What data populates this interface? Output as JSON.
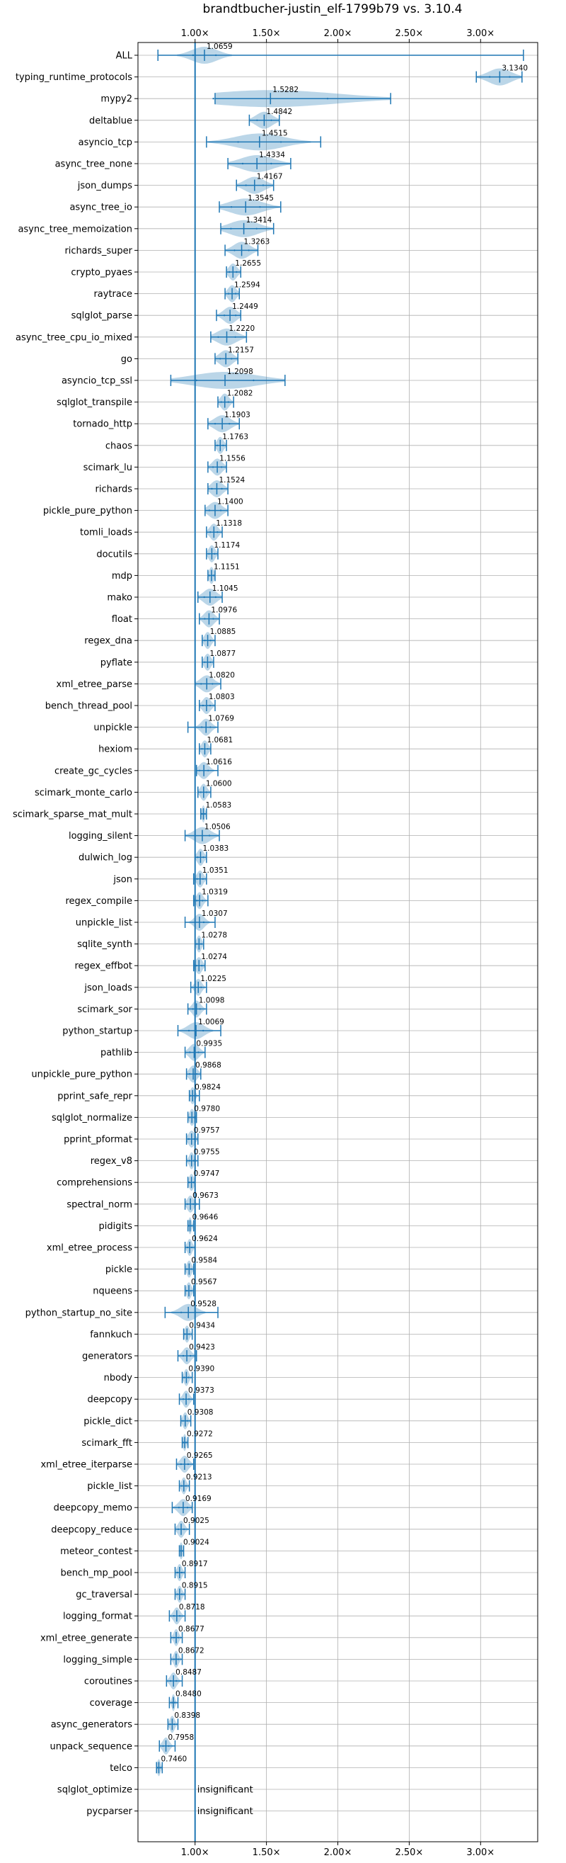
{
  "chart_data": {
    "type": "violin",
    "title": "brandtbucher-justin_elf-1799b79 vs. 3.10.4",
    "orientation": "horizontal",
    "x_ticks": [
      {
        "value": 1.0,
        "label": "1.00×"
      },
      {
        "value": 1.5,
        "label": "1.50×"
      },
      {
        "value": 2.0,
        "label": "2.00×"
      },
      {
        "value": 2.5,
        "label": "2.50×"
      },
      {
        "value": 3.0,
        "label": "3.00×"
      }
    ],
    "xlim": [
      0.6,
      3.4
    ],
    "grid": true,
    "baseline": 1.0,
    "benchmarks": [
      {
        "name": "ALL",
        "value": 1.0659,
        "label": "1.0659",
        "min": 0.74,
        "max": 3.3,
        "spread": 0.16
      },
      {
        "name": "typing_runtime_protocols",
        "value": 3.134,
        "label": "3.1340",
        "min": 2.97,
        "max": 3.29,
        "spread": 0.14
      },
      {
        "name": "mypy2",
        "value": 1.5282,
        "label": "1.5282",
        "min": 1.14,
        "max": 2.37,
        "spread": 0.8
      },
      {
        "name": "deltablue",
        "value": 1.4842,
        "label": "1.4842",
        "min": 1.38,
        "max": 1.59,
        "spread": 0.1
      },
      {
        "name": "asyncio_tcp",
        "value": 1.4515,
        "label": "1.4515",
        "min": 1.08,
        "max": 1.88,
        "spread": 0.3
      },
      {
        "name": "async_tree_none",
        "value": 1.4334,
        "label": "1.4334",
        "min": 1.23,
        "max": 1.67,
        "spread": 0.2
      },
      {
        "name": "json_dumps",
        "value": 1.4167,
        "label": "1.4167",
        "min": 1.29,
        "max": 1.55,
        "spread": 0.12
      },
      {
        "name": "async_tree_io",
        "value": 1.3545,
        "label": "1.3545",
        "min": 1.17,
        "max": 1.6,
        "spread": 0.2
      },
      {
        "name": "async_tree_memoization",
        "value": 1.3414,
        "label": "1.3414",
        "min": 1.18,
        "max": 1.55,
        "spread": 0.18
      },
      {
        "name": "richards_super",
        "value": 1.3263,
        "label": "1.3263",
        "min": 1.21,
        "max": 1.44,
        "spread": 0.1
      },
      {
        "name": "crypto_pyaes",
        "value": 1.2655,
        "label": "1.2655",
        "min": 1.22,
        "max": 1.32,
        "spread": 0.05
      },
      {
        "name": "raytrace",
        "value": 1.2594,
        "label": "1.2594",
        "min": 1.21,
        "max": 1.31,
        "spread": 0.05
      },
      {
        "name": "sqlglot_parse",
        "value": 1.2449,
        "label": "1.2449",
        "min": 1.15,
        "max": 1.32,
        "spread": 0.08
      },
      {
        "name": "async_tree_cpu_io_mixed",
        "value": 1.222,
        "label": "1.2220",
        "min": 1.11,
        "max": 1.36,
        "spread": 0.12
      },
      {
        "name": "go",
        "value": 1.2157,
        "label": "1.2157",
        "min": 1.14,
        "max": 1.3,
        "spread": 0.08
      },
      {
        "name": "asyncio_tcp_ssl",
        "value": 1.2098,
        "label": "1.2098",
        "min": 0.83,
        "max": 1.63,
        "spread": 0.4
      },
      {
        "name": "sqlglot_transpile",
        "value": 1.2082,
        "label": "1.2082",
        "min": 1.16,
        "max": 1.27,
        "spread": 0.05
      },
      {
        "name": "tornado_http",
        "value": 1.1903,
        "label": "1.1903",
        "min": 1.09,
        "max": 1.31,
        "spread": 0.1
      },
      {
        "name": "chaos",
        "value": 1.1763,
        "label": "1.1763",
        "min": 1.14,
        "max": 1.22,
        "spread": 0.04
      },
      {
        "name": "scimark_lu",
        "value": 1.1556,
        "label": "1.1556",
        "min": 1.09,
        "max": 1.22,
        "spread": 0.06
      },
      {
        "name": "richards",
        "value": 1.1524,
        "label": "1.1524",
        "min": 1.09,
        "max": 1.23,
        "spread": 0.07
      },
      {
        "name": "pickle_pure_python",
        "value": 1.14,
        "label": "1.1400",
        "min": 1.07,
        "max": 1.23,
        "spread": 0.08
      },
      {
        "name": "tomli_loads",
        "value": 1.1318,
        "label": "1.1318",
        "min": 1.08,
        "max": 1.19,
        "spread": 0.05
      },
      {
        "name": "docutils",
        "value": 1.1174,
        "label": "1.1174",
        "min": 1.08,
        "max": 1.16,
        "spread": 0.04
      },
      {
        "name": "mdp",
        "value": 1.1151,
        "label": "1.1151",
        "min": 1.09,
        "max": 1.14,
        "spread": 0.03
      },
      {
        "name": "mako",
        "value": 1.1045,
        "label": "1.1045",
        "min": 1.02,
        "max": 1.19,
        "spread": 0.08
      },
      {
        "name": "float",
        "value": 1.0976,
        "label": "1.0976",
        "min": 1.03,
        "max": 1.17,
        "spread": 0.06
      },
      {
        "name": "regex_dna",
        "value": 1.0885,
        "label": "1.0885",
        "min": 1.05,
        "max": 1.14,
        "spread": 0.04
      },
      {
        "name": "pyflate",
        "value": 1.0877,
        "label": "1.0877",
        "min": 1.05,
        "max": 1.13,
        "spread": 0.04
      },
      {
        "name": "xml_etree_parse",
        "value": 1.082,
        "label": "1.0820",
        "min": 1.0,
        "max": 1.18,
        "spread": 0.08
      },
      {
        "name": "bench_thread_pool",
        "value": 1.0803,
        "label": "1.0803",
        "min": 1.03,
        "max": 1.14,
        "spread": 0.05
      },
      {
        "name": "unpickle",
        "value": 1.0769,
        "label": "1.0769",
        "min": 0.95,
        "max": 1.16,
        "spread": 0.06
      },
      {
        "name": "hexiom",
        "value": 1.0681,
        "label": "1.0681",
        "min": 1.03,
        "max": 1.11,
        "spread": 0.04
      },
      {
        "name": "create_gc_cycles",
        "value": 1.0616,
        "label": "1.0616",
        "min": 1.01,
        "max": 1.16,
        "spread": 0.06
      },
      {
        "name": "scimark_monte_carlo",
        "value": 1.06,
        "label": "1.0600",
        "min": 1.02,
        "max": 1.11,
        "spread": 0.04
      },
      {
        "name": "scimark_sparse_mat_mult",
        "value": 1.0583,
        "label": "1.0583",
        "min": 1.04,
        "max": 1.08,
        "spread": 0.02
      },
      {
        "name": "logging_silent",
        "value": 1.0506,
        "label": "1.0506",
        "min": 0.93,
        "max": 1.17,
        "spread": 0.1
      },
      {
        "name": "dulwich_log",
        "value": 1.0383,
        "label": "1.0383",
        "min": 1.0,
        "max": 1.08,
        "spread": 0.04
      },
      {
        "name": "json",
        "value": 1.0351,
        "label": "1.0351",
        "min": 0.99,
        "max": 1.08,
        "spread": 0.04
      },
      {
        "name": "regex_compile",
        "value": 1.0319,
        "label": "1.0319",
        "min": 0.99,
        "max": 1.09,
        "spread": 0.04
      },
      {
        "name": "unpickle_list",
        "value": 1.0307,
        "label": "1.0307",
        "min": 0.93,
        "max": 1.14,
        "spread": 0.06
      },
      {
        "name": "sqlite_synth",
        "value": 1.0278,
        "label": "1.0278",
        "min": 1.0,
        "max": 1.06,
        "spread": 0.03
      },
      {
        "name": "regex_effbot",
        "value": 1.0274,
        "label": "1.0274",
        "min": 0.99,
        "max": 1.07,
        "spread": 0.04
      },
      {
        "name": "json_loads",
        "value": 1.0225,
        "label": "1.0225",
        "min": 0.97,
        "max": 1.08,
        "spread": 0.04
      },
      {
        "name": "scimark_sor",
        "value": 1.0098,
        "label": "1.0098",
        "min": 0.95,
        "max": 1.08,
        "spread": 0.05
      },
      {
        "name": "python_startup",
        "value": 1.0069,
        "label": "1.0069",
        "min": 0.88,
        "max": 1.18,
        "spread": 0.1
      },
      {
        "name": "pathlib",
        "value": 0.9935,
        "label": "0.9935",
        "min": 0.93,
        "max": 1.07,
        "spread": 0.06
      },
      {
        "name": "unpickle_pure_python",
        "value": 0.9868,
        "label": "0.9868",
        "min": 0.94,
        "max": 1.04,
        "spread": 0.05
      },
      {
        "name": "pprint_safe_repr",
        "value": 0.9824,
        "label": "0.9824",
        "min": 0.96,
        "max": 1.03,
        "spread": 0.03
      },
      {
        "name": "sqlglot_normalize",
        "value": 0.978,
        "label": "0.9780",
        "min": 0.95,
        "max": 1.01,
        "spread": 0.03
      },
      {
        "name": "pprint_pformat",
        "value": 0.9757,
        "label": "0.9757",
        "min": 0.94,
        "max": 1.02,
        "spread": 0.04
      },
      {
        "name": "regex_v8",
        "value": 0.9755,
        "label": "0.9755",
        "min": 0.94,
        "max": 1.02,
        "spread": 0.03
      },
      {
        "name": "comprehensions",
        "value": 0.9747,
        "label": "0.9747",
        "min": 0.95,
        "max": 1.0,
        "spread": 0.03
      },
      {
        "name": "spectral_norm",
        "value": 0.9673,
        "label": "0.9673",
        "min": 0.93,
        "max": 1.03,
        "spread": 0.04
      },
      {
        "name": "pidigits",
        "value": 0.9646,
        "label": "0.9646",
        "min": 0.95,
        "max": 0.99,
        "spread": 0.02
      },
      {
        "name": "xml_etree_process",
        "value": 0.9624,
        "label": "0.9624",
        "min": 0.93,
        "max": 1.0,
        "spread": 0.03
      },
      {
        "name": "pickle",
        "value": 0.9584,
        "label": "0.9584",
        "min": 0.93,
        "max": 0.99,
        "spread": 0.03
      },
      {
        "name": "nqueens",
        "value": 0.9567,
        "label": "0.9567",
        "min": 0.93,
        "max": 0.99,
        "spread": 0.03
      },
      {
        "name": "python_startup_no_site",
        "value": 0.9528,
        "label": "0.9528",
        "min": 0.79,
        "max": 1.16,
        "spread": 0.1
      },
      {
        "name": "fannkuch",
        "value": 0.9434,
        "label": "0.9434",
        "min": 0.92,
        "max": 0.98,
        "spread": 0.03
      },
      {
        "name": "generators",
        "value": 0.9423,
        "label": "0.9423",
        "min": 0.88,
        "max": 1.01,
        "spread": 0.05
      },
      {
        "name": "nbody",
        "value": 0.939,
        "label": "0.9390",
        "min": 0.91,
        "max": 0.98,
        "spread": 0.03
      },
      {
        "name": "deepcopy",
        "value": 0.9373,
        "label": "0.9373",
        "min": 0.89,
        "max": 0.99,
        "spread": 0.04
      },
      {
        "name": "pickle_dict",
        "value": 0.9308,
        "label": "0.9308",
        "min": 0.9,
        "max": 0.97,
        "spread": 0.03
      },
      {
        "name": "scimark_fft",
        "value": 0.9272,
        "label": "0.9272",
        "min": 0.91,
        "max": 0.95,
        "spread": 0.02
      },
      {
        "name": "xml_etree_iterparse",
        "value": 0.9265,
        "label": "0.9265",
        "min": 0.87,
        "max": 0.99,
        "spread": 0.05
      },
      {
        "name": "pickle_list",
        "value": 0.9213,
        "label": "0.9213",
        "min": 0.89,
        "max": 0.96,
        "spread": 0.03
      },
      {
        "name": "deepcopy_memo",
        "value": 0.9169,
        "label": "0.9169",
        "min": 0.84,
        "max": 0.98,
        "spread": 0.06
      },
      {
        "name": "deepcopy_reduce",
        "value": 0.9025,
        "label": "0.9025",
        "min": 0.86,
        "max": 0.96,
        "spread": 0.04
      },
      {
        "name": "meteor_contest",
        "value": 0.9024,
        "label": "0.9024",
        "min": 0.89,
        "max": 0.92,
        "spread": 0.02
      },
      {
        "name": "bench_mp_pool",
        "value": 0.8917,
        "label": "0.8917",
        "min": 0.86,
        "max": 0.93,
        "spread": 0.03
      },
      {
        "name": "gc_traversal",
        "value": 0.8915,
        "label": "0.8915",
        "min": 0.86,
        "max": 0.93,
        "spread": 0.03
      },
      {
        "name": "logging_format",
        "value": 0.8718,
        "label": "0.8718",
        "min": 0.82,
        "max": 0.93,
        "spread": 0.04
      },
      {
        "name": "xml_etree_generate",
        "value": 0.8677,
        "label": "0.8677",
        "min": 0.83,
        "max": 0.91,
        "spread": 0.03
      },
      {
        "name": "logging_simple",
        "value": 0.8672,
        "label": "0.8672",
        "min": 0.83,
        "max": 0.91,
        "spread": 0.03
      },
      {
        "name": "coroutines",
        "value": 0.8487,
        "label": "0.8487",
        "min": 0.8,
        "max": 0.91,
        "spread": 0.04
      },
      {
        "name": "coverage",
        "value": 0.848,
        "label": "0.8480",
        "min": 0.82,
        "max": 0.88,
        "spread": 0.02
      },
      {
        "name": "async_generators",
        "value": 0.8398,
        "label": "0.8398",
        "min": 0.81,
        "max": 0.88,
        "spread": 0.03
      },
      {
        "name": "unpack_sequence",
        "value": 0.7958,
        "label": "0.7958",
        "min": 0.75,
        "max": 0.86,
        "spread": 0.04
      },
      {
        "name": "telco",
        "value": 0.746,
        "label": "0.7460",
        "min": 0.73,
        "max": 0.77,
        "spread": 0.02
      },
      {
        "name": "sqlglot_optimize",
        "value": null,
        "label": "insignificant"
      },
      {
        "name": "pycparser",
        "value": null,
        "label": "insignificant"
      }
    ]
  }
}
